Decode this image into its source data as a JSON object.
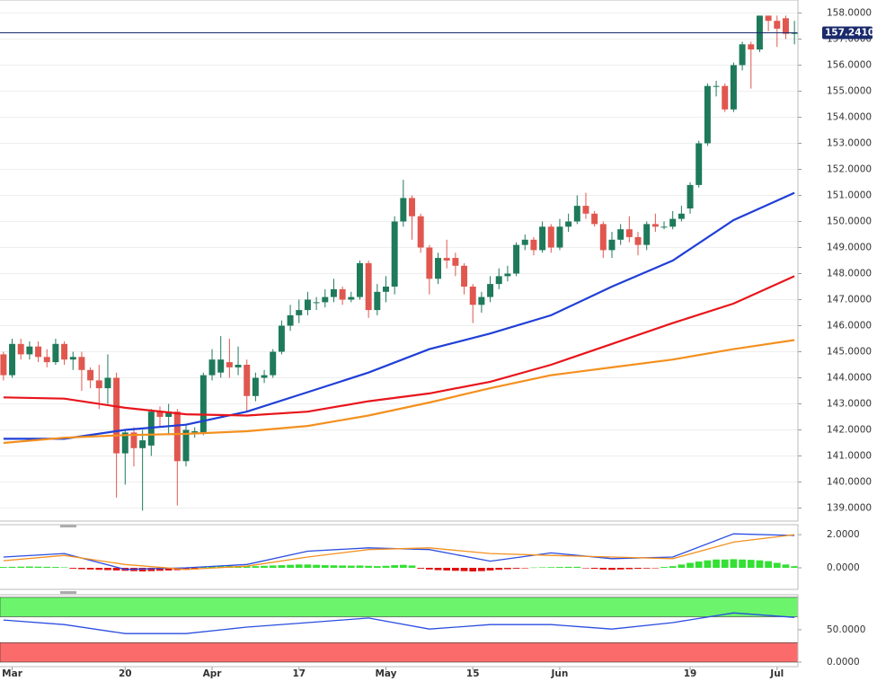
{
  "chart_data": [
    {
      "type": "candlestick",
      "up_color": "#1e7a5a",
      "down_color": "#e0574f",
      "xlim": [
        -0.4,
        91.4
      ],
      "ylim": [
        138.5,
        158.5
      ],
      "yticks": [
        {
          "value": 139,
          "label": "139.0000"
        },
        {
          "value": 140,
          "label": "140.0000"
        },
        {
          "value": 141,
          "label": "141.0000"
        },
        {
          "value": 142,
          "label": "142.0000"
        },
        {
          "value": 143,
          "label": "143.0000"
        },
        {
          "value": 144,
          "label": "144.0000"
        },
        {
          "value": 145,
          "label": "145.0000"
        },
        {
          "value": 146,
          "label": "146.0000"
        },
        {
          "value": 147,
          "label": "147.0000"
        },
        {
          "value": 148,
          "label": "148.0000"
        },
        {
          "value": 149,
          "label": "149.0000"
        },
        {
          "value": 150,
          "label": "150.0000"
        },
        {
          "value": 151,
          "label": "151.0000"
        },
        {
          "value": 152,
          "label": "152.0000"
        },
        {
          "value": 153,
          "label": "153.0000"
        },
        {
          "value": 154,
          "label": "154.0000"
        },
        {
          "value": 155,
          "label": "155.0000"
        },
        {
          "value": 156,
          "label": "156.0000"
        },
        {
          "value": 157,
          "label": "157.0000"
        },
        {
          "value": 158,
          "label": "158.0000"
        }
      ],
      "grid": true,
      "current": {
        "value": 157.241,
        "label": "157.2410",
        "color": "#1a2a6c"
      },
      "open": [
        144.9,
        144.1,
        145.3,
        144.9,
        145.2,
        144.8,
        144.6,
        145.3,
        144.7,
        144.8,
        144.3,
        143.9,
        143.6,
        144.0,
        141.1,
        141.9,
        141.3,
        141.4,
        142.7,
        142.5,
        142.7,
        140.8,
        141.9,
        141.9,
        144.1,
        144.2,
        144.6,
        144.4,
        144.5,
        143.3,
        144.0,
        144.1,
        145.0,
        146.0,
        146.4,
        146.6,
        146.9,
        146.9,
        147.1,
        147.4,
        147.0,
        147.1,
        148.4,
        146.6,
        147.3,
        147.5,
        150.0,
        150.9,
        150.2,
        149.0,
        147.8,
        148.6,
        148.6,
        148.3,
        147.5,
        146.8,
        147.1,
        147.6,
        147.9,
        148.0,
        149.1,
        149.3,
        148.9,
        149.8,
        149.0,
        149.8,
        150.0,
        150.6,
        150.3,
        149.9,
        148.9,
        149.3,
        149.7,
        149.4,
        149.1,
        149.9,
        149.8,
        149.8,
        150.1,
        150.5,
        151.4,
        153.0,
        155.2,
        155.2,
        154.3,
        156.0,
        156.8,
        156.6,
        157.9,
        157.7,
        157.8,
        157.2
      ],
      "high": [
        145.0,
        145.5,
        145.5,
        145.4,
        145.4,
        145.1,
        145.5,
        145.4,
        145.0,
        145.0,
        144.4,
        144.5,
        144.9,
        144.2,
        142.0,
        142.1,
        142.0,
        142.8,
        142.9,
        143.0,
        142.8,
        142.2,
        142.1,
        144.2,
        145.1,
        145.6,
        145.5,
        145.2,
        144.7,
        144.2,
        144.3,
        145.1,
        146.2,
        146.8,
        147.0,
        147.3,
        147.1,
        147.4,
        147.8,
        147.5,
        147.3,
        148.5,
        148.5,
        147.6,
        147.9,
        150.2,
        151.6,
        151.0,
        150.3,
        149.1,
        148.8,
        149.3,
        148.8,
        148.4,
        147.6,
        147.3,
        147.9,
        148.2,
        148.3,
        149.2,
        149.5,
        149.4,
        150.0,
        149.9,
        150.1,
        150.3,
        151.0,
        151.1,
        150.4,
        150.0,
        149.6,
        149.9,
        150.2,
        149.6,
        150.0,
        150.3,
        150.0,
        150.4,
        150.6,
        151.5,
        153.1,
        155.3,
        155.4,
        155.3,
        156.1,
        156.9,
        156.9,
        157.9,
        157.9,
        157.9,
        157.9,
        157.7
      ],
      "low": [
        143.9,
        144.0,
        144.7,
        144.7,
        144.6,
        144.4,
        144.5,
        144.5,
        144.3,
        143.5,
        143.6,
        142.8,
        143.0,
        139.4,
        139.9,
        140.6,
        138.9,
        141.0,
        142.1,
        141.8,
        139.1,
        140.6,
        141.7,
        141.8,
        143.9,
        144.0,
        144.0,
        144.1,
        142.7,
        143.1,
        143.8,
        144.0,
        144.9,
        145.8,
        146.1,
        146.4,
        146.6,
        146.7,
        146.9,
        146.8,
        146.9,
        147.0,
        146.3,
        146.4,
        146.9,
        147.2,
        149.8,
        149.3,
        148.8,
        147.2,
        147.6,
        148.2,
        147.9,
        147.2,
        146.1,
        146.5,
        146.9,
        147.4,
        147.7,
        147.9,
        148.9,
        148.7,
        148.8,
        148.8,
        148.9,
        149.6,
        149.9,
        150.1,
        149.8,
        148.6,
        148.6,
        149.1,
        149.2,
        148.7,
        148.9,
        149.6,
        149.7,
        149.7,
        150.0,
        150.3,
        151.3,
        152.9,
        154.8,
        154.2,
        154.2,
        155.8,
        155.1,
        156.5,
        157.3,
        156.7,
        157.0,
        156.8
      ],
      "close": [
        144.1,
        145.3,
        144.9,
        145.2,
        144.8,
        144.6,
        145.3,
        144.7,
        144.8,
        144.3,
        143.9,
        143.6,
        144.0,
        141.1,
        141.9,
        141.3,
        141.6,
        142.7,
        142.5,
        142.7,
        140.8,
        142.0,
        141.95,
        144.1,
        144.7,
        144.7,
        144.4,
        144.5,
        143.3,
        144.0,
        144.1,
        145.0,
        146.0,
        146.4,
        146.6,
        147.0,
        146.9,
        147.1,
        147.4,
        147.0,
        147.1,
        148.4,
        146.6,
        147.3,
        147.5,
        150.0,
        150.9,
        150.2,
        149.0,
        147.8,
        148.6,
        148.5,
        148.3,
        147.5,
        146.8,
        147.1,
        147.6,
        147.9,
        148.0,
        149.1,
        149.3,
        148.9,
        149.8,
        149.0,
        149.8,
        150.0,
        150.6,
        150.3,
        149.9,
        148.9,
        149.3,
        149.7,
        149.4,
        149.1,
        149.9,
        149.8,
        149.8,
        150.1,
        150.3,
        151.4,
        153.0,
        155.2,
        155.2,
        154.3,
        156.0,
        156.8,
        156.6,
        157.9,
        157.7,
        157.4,
        157.2,
        157.241
      ],
      "series": [
        {
          "color": "#1f3fd6",
          "x": [
            0,
            7,
            14,
            21,
            28,
            35,
            42,
            49,
            56,
            63,
            70,
            77,
            84,
            91
          ],
          "values": [
            141.66,
            141.66,
            142.0,
            142.2,
            142.7,
            143.45,
            144.2,
            145.1,
            145.7,
            146.4,
            147.5,
            148.5,
            150.05,
            151.1
          ]
        },
        {
          "color": "#e8151b",
          "x": [
            0,
            7,
            14,
            21,
            28,
            35,
            42,
            49,
            56,
            63,
            70,
            77,
            84,
            91
          ],
          "values": [
            143.25,
            143.2,
            142.85,
            142.6,
            142.55,
            142.7,
            143.1,
            143.4,
            143.85,
            144.5,
            145.3,
            146.1,
            146.85,
            147.9
          ]
        },
        {
          "color": "#f4901e",
          "x": [
            0,
            7,
            14,
            21,
            28,
            35,
            42,
            49,
            56,
            63,
            70,
            77,
            84,
            91
          ],
          "values": [
            141.5,
            141.7,
            141.8,
            141.85,
            141.95,
            142.15,
            142.55,
            143.05,
            143.6,
            144.1,
            144.4,
            144.7,
            145.1,
            145.45
          ]
        }
      ]
    },
    {
      "type": "line",
      "xlim": [
        -0.4,
        91.4
      ],
      "ylim": [
        -1.3,
        2.6
      ],
      "yticks": [
        {
          "value": 0,
          "label": "0.0000"
        },
        {
          "value": 2,
          "label": "2.0000"
        }
      ],
      "histogram": {
        "up_color": "#33e033",
        "down_color": "#e01010",
        "values": [
          0.05,
          0.06,
          0.07,
          0.08,
          0.07,
          0.06,
          0.05,
          0.03,
          -0.05,
          -0.08,
          -0.1,
          -0.12,
          -0.14,
          -0.16,
          -0.18,
          -0.2,
          -0.22,
          -0.2,
          -0.18,
          -0.16,
          -0.14,
          -0.12,
          -0.1,
          0.05,
          0.08,
          0.1,
          0.12,
          0.1,
          0.08,
          0.1,
          0.12,
          0.14,
          0.16,
          0.18,
          0.2,
          0.2,
          0.18,
          0.16,
          0.15,
          0.14,
          0.13,
          0.14,
          0.12,
          0.1,
          0.12,
          0.16,
          0.18,
          0.14,
          -0.05,
          -0.1,
          -0.14,
          -0.16,
          -0.18,
          -0.2,
          -0.22,
          -0.2,
          -0.16,
          -0.12,
          -0.08,
          -0.05,
          -0.03,
          0.02,
          0.03,
          0.04,
          0.05,
          0.06,
          0.06,
          -0.03,
          -0.06,
          -0.1,
          -0.12,
          -0.1,
          -0.08,
          -0.06,
          -0.04,
          -0.02,
          0.05,
          0.1,
          0.2,
          0.3,
          0.38,
          0.45,
          0.5,
          0.5,
          0.52,
          0.5,
          0.48,
          0.45,
          0.4,
          0.3,
          0.2,
          0.1
        ]
      },
      "series": [
        {
          "color": "#2a4de0",
          "x": [
            0,
            7,
            14,
            21,
            28,
            35,
            42,
            49,
            56,
            63,
            70,
            77,
            84,
            91
          ],
          "values": [
            0.65,
            0.86,
            -0.1,
            0.0,
            0.2,
            1.0,
            1.2,
            1.1,
            0.4,
            0.9,
            0.55,
            0.65,
            2.05,
            1.95
          ]
        },
        {
          "color": "#f4901e",
          "x": [
            0,
            7,
            14,
            21,
            28,
            35,
            42,
            49,
            56,
            63,
            70,
            77,
            84,
            91
          ],
          "values": [
            0.43,
            0.75,
            0.2,
            -0.1,
            0.1,
            0.65,
            1.1,
            1.2,
            0.86,
            0.75,
            0.65,
            0.55,
            1.55,
            2.0
          ]
        }
      ]
    },
    {
      "type": "line",
      "xlim": [
        -0.4,
        91.4
      ],
      "ylim": [
        -7,
        104
      ],
      "yticks": [
        {
          "value": 0,
          "label": "0.0000"
        },
        {
          "value": 50,
          "label": "50.0000"
        }
      ],
      "zones": [
        {
          "from": 70,
          "to": 100,
          "color": "#6cf56c"
        },
        {
          "from": 0,
          "to": 30,
          "color": "#fb6b6b"
        }
      ],
      "series": [
        {
          "color": "#2a4de0",
          "x": [
            0,
            7,
            14,
            21,
            28,
            35,
            42,
            49,
            56,
            63,
            70,
            77,
            84,
            91
          ],
          "values": [
            65,
            58,
            44,
            44,
            54,
            61,
            68,
            51,
            58,
            58,
            51,
            61,
            76,
            69
          ]
        }
      ],
      "xticks": [
        {
          "value": 1,
          "label": "Mar"
        },
        {
          "value": 14,
          "label": "20"
        },
        {
          "value": 24,
          "label": "Apr"
        },
        {
          "value": 34,
          "label": "17"
        },
        {
          "value": 44,
          "label": "May"
        },
        {
          "value": 54,
          "label": "15"
        },
        {
          "value": 64,
          "label": "Jun"
        },
        {
          "value": 79,
          "label": "19"
        },
        {
          "value": 89,
          "label": "Jul"
        }
      ]
    }
  ]
}
